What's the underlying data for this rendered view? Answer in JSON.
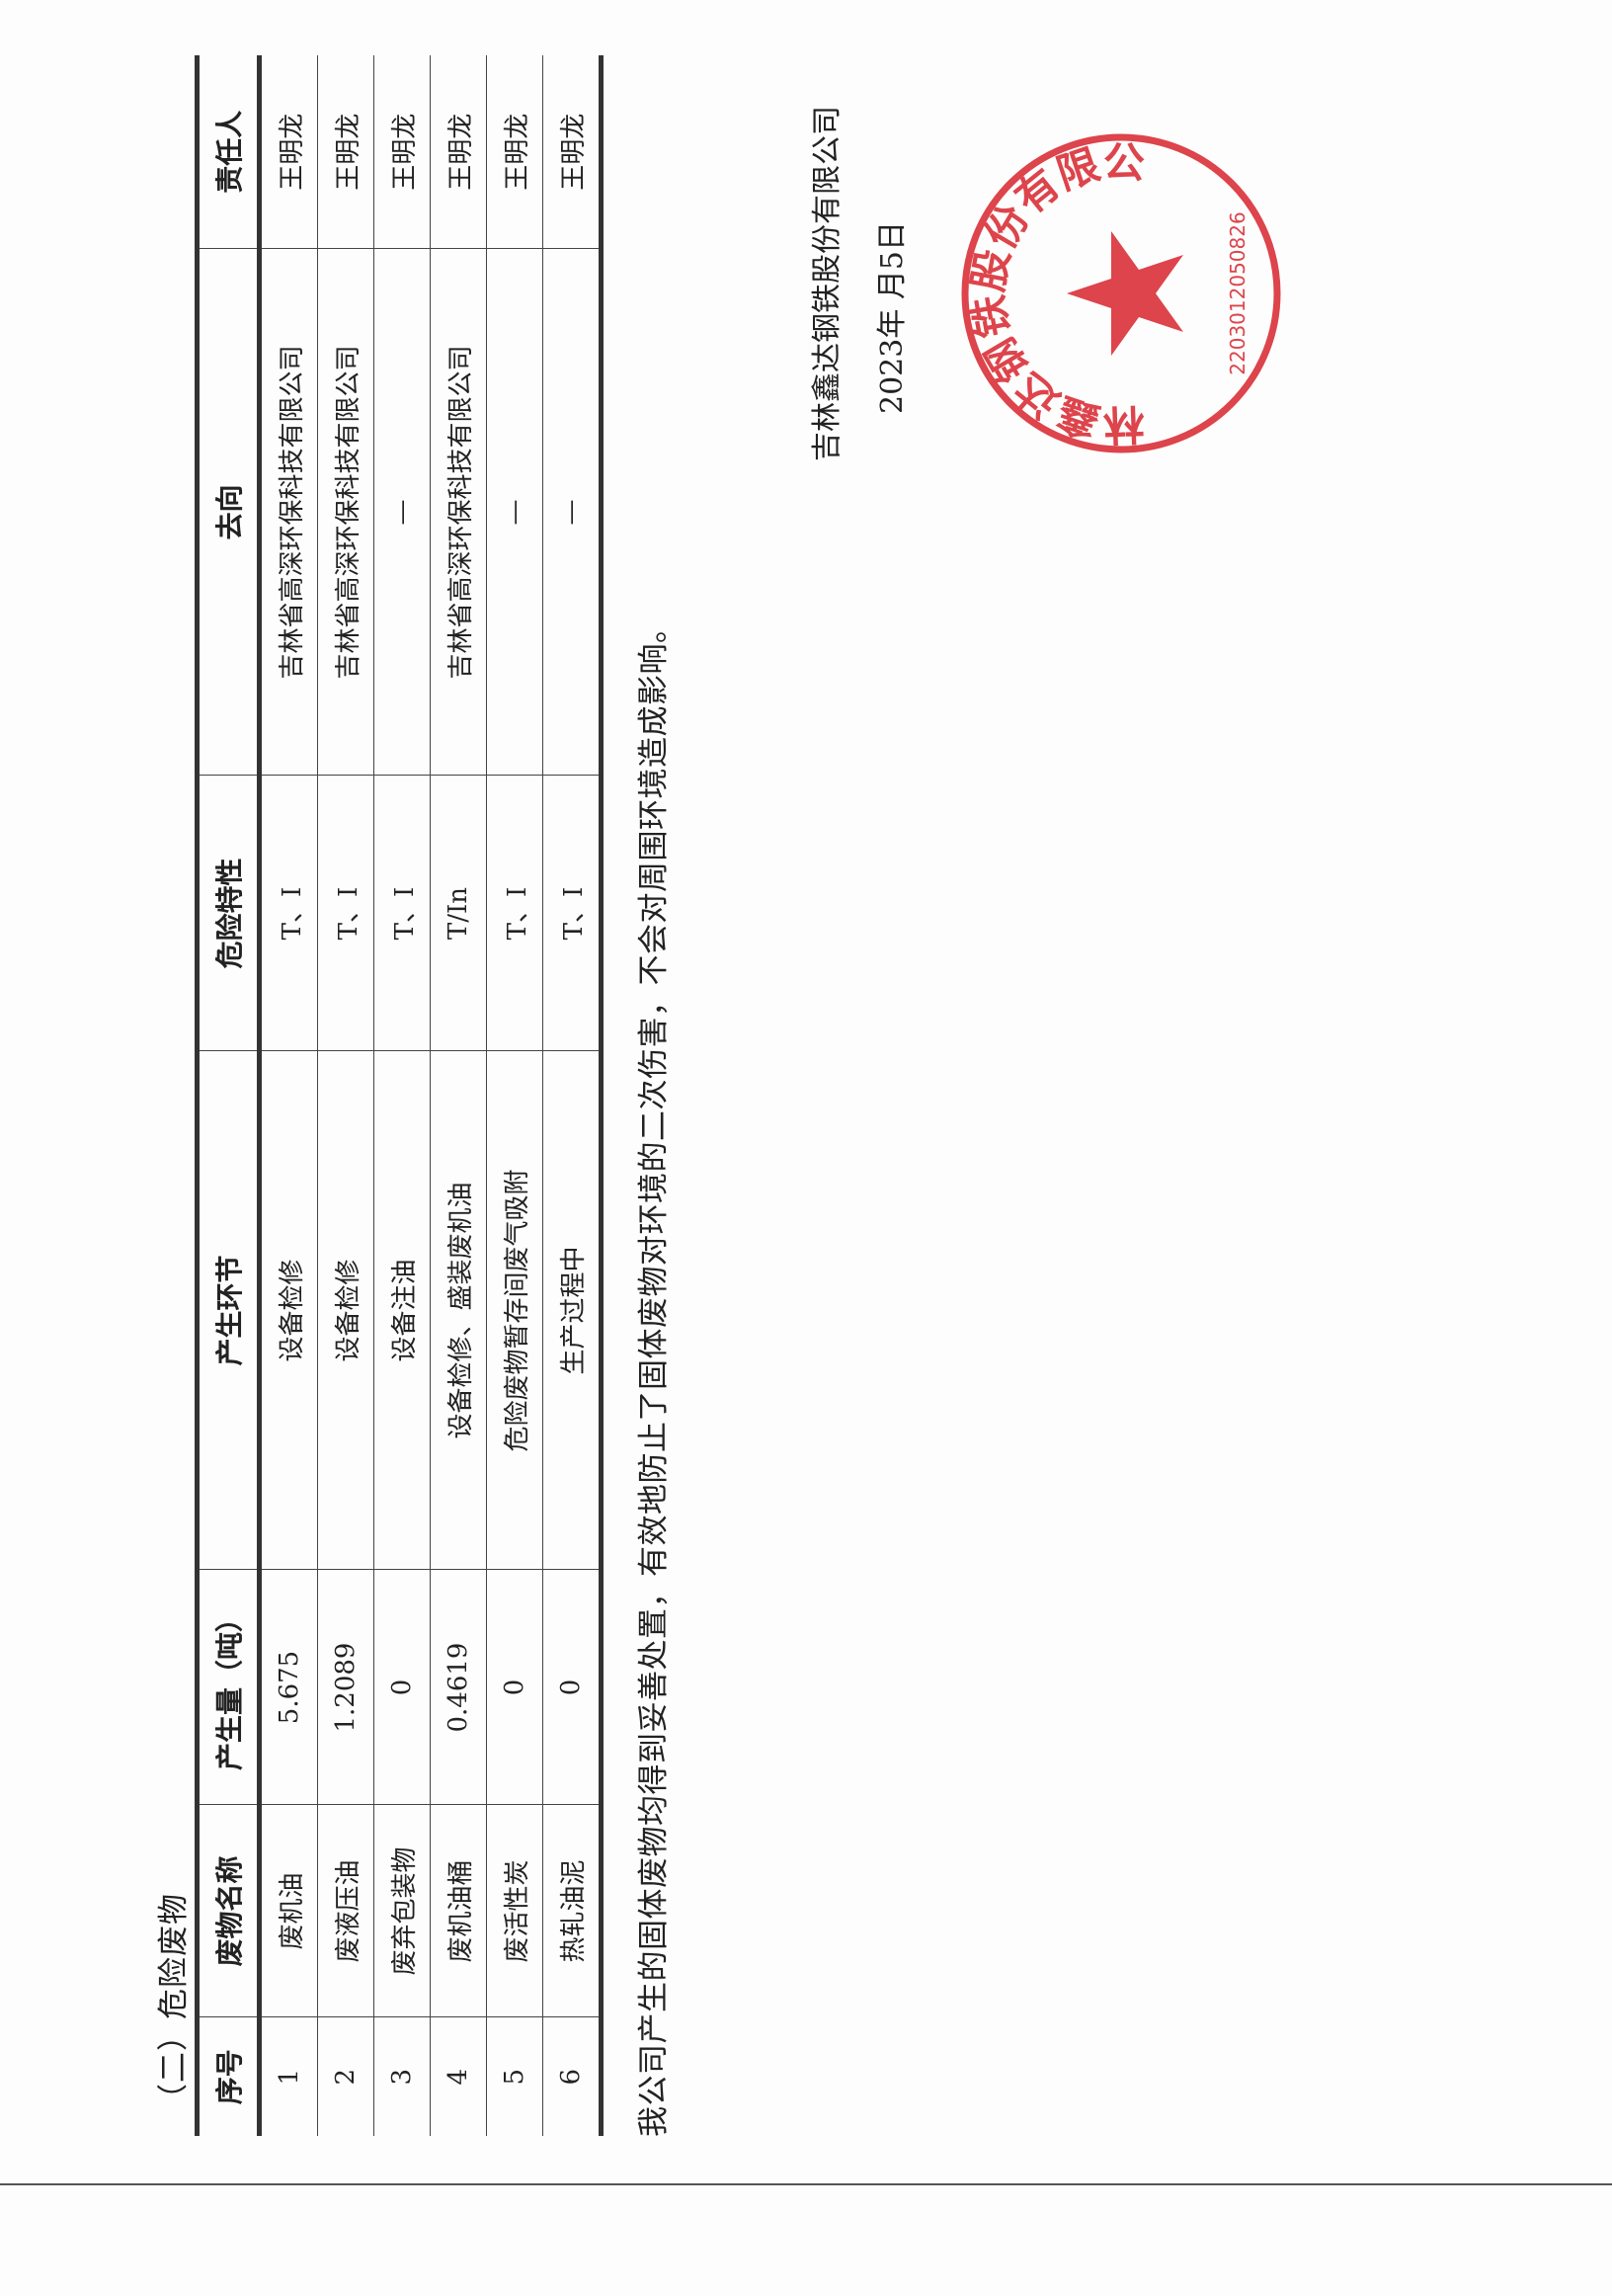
{
  "section_title": "（二）危险废物",
  "table": {
    "headers": [
      "序号",
      "废物名称",
      "产生量（吨）",
      "产生环节",
      "危险特性",
      "去向",
      "责任人"
    ],
    "rows": [
      [
        "1",
        "废机油",
        "5.675",
        "设备检修",
        "T、I",
        "吉林省高深环保科技有限公司",
        "王明龙"
      ],
      [
        "2",
        "废液压油",
        "1.2089",
        "设备检修",
        "T、I",
        "吉林省高深环保科技有限公司",
        "王明龙"
      ],
      [
        "3",
        "废弃包装物",
        "0",
        "设备注油",
        "T、I",
        "—",
        "王明龙"
      ],
      [
        "4",
        "废机油桶",
        "0.4619",
        "设备检修、盛装废机油",
        "T/In",
        "吉林省高深环保科技有限公司",
        "王明龙"
      ],
      [
        "5",
        "废活性炭",
        "0",
        "危险废物暂存间废气吸附",
        "T、I",
        "—",
        "王明龙"
      ],
      [
        "6",
        "热轧油泥",
        "0",
        "生产过程中",
        "T、I",
        "—",
        "王明龙"
      ]
    ]
  },
  "note": "我公司产生的固体废物均得到妥善处置，有效地防止了固体废物对环境的二次伤害，不会对周围环境造成影响。",
  "signature": {
    "company": "吉林鑫达钢铁股份有限公司",
    "date": "2023年 月5日"
  },
  "stamp": {
    "text": "吉林鑫达钢铁股份有限公司",
    "code": "2203012050826",
    "color": "#d8242c"
  }
}
